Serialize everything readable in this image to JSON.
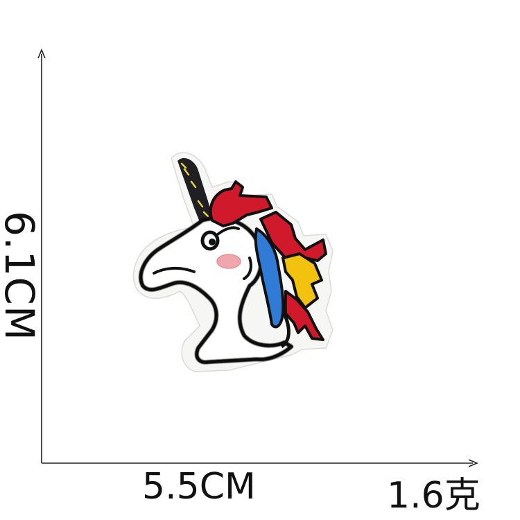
{
  "dimensions": {
    "height_label": "6.1CM",
    "width_label": "5.5CM",
    "weight_label": "1.6克"
  },
  "product": {
    "subject": "unicorn-head-embroidered-patch",
    "colors": {
      "felt": "#f6f6f4",
      "outline": "#111111",
      "horn": "#1f1f24",
      "horn_stitch": "#e8d23a",
      "mane_red": "#d0192a",
      "mane_blue": "#2f7bd6",
      "mane_yellow": "#f2c20f",
      "cheek": "#f0a6ad"
    }
  }
}
